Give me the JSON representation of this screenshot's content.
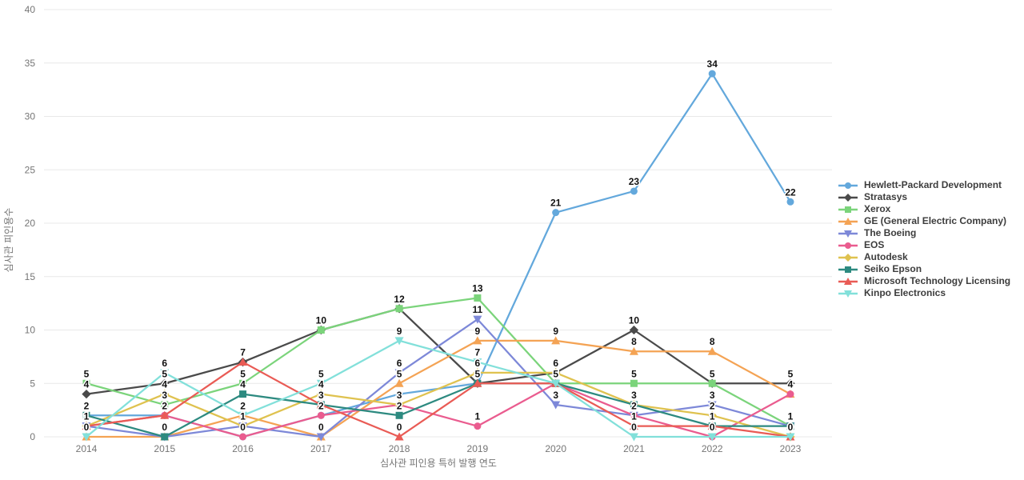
{
  "chart_data": {
    "type": "line",
    "x": [
      2014,
      2015,
      2016,
      2017,
      2018,
      2019,
      2020,
      2021,
      2022,
      2023
    ],
    "xlabel": "심사관 피인용 특허 발행 연도",
    "ylabel": "심사관 피인용수",
    "ylim": [
      0,
      40
    ],
    "y_ticks": [
      0,
      5,
      10,
      15,
      20,
      25,
      30,
      35,
      40
    ],
    "grid": true,
    "legend_position": "right",
    "series": [
      {
        "name": "Hewlett-Packard Development",
        "color": "#63A8DC",
        "marker": "circle",
        "values": [
          2,
          2,
          0,
          2,
          4,
          5,
          21,
          23,
          34,
          22
        ],
        "hidden_labels": [
          2018
        ]
      },
      {
        "name": "Stratasys",
        "color": "#4A4A4A",
        "marker": "diamond",
        "values": [
          4,
          5,
          7,
          10,
          12,
          5,
          6,
          10,
          5,
          5
        ],
        "hidden_labels": []
      },
      {
        "name": "Xerox",
        "color": "#7BD47B",
        "marker": "square",
        "values": [
          5,
          3,
          5,
          10,
          12,
          13,
          5,
          5,
          5,
          1
        ],
        "hidden_labels": []
      },
      {
        "name": "GE (General Electric Company)",
        "color": "#F4A354",
        "marker": "triangle-up",
        "values": [
          0,
          0,
          2,
          0,
          5,
          9,
          9,
          8,
          8,
          4
        ],
        "hidden_labels": []
      },
      {
        "name": "The Boeing",
        "color": "#7D88D8",
        "marker": "triangle-down",
        "values": [
          1,
          0,
          1,
          0,
          6,
          11,
          3,
          2,
          3,
          1
        ],
        "hidden_labels": []
      },
      {
        "name": "EOS",
        "color": "#EA5C8F",
        "marker": "circle",
        "values": [
          1,
          2,
          0,
          2,
          3,
          1,
          5,
          2,
          0,
          4
        ],
        "hidden_labels": []
      },
      {
        "name": "Autodesk",
        "color": "#DFC24F",
        "marker": "diamond",
        "values": [
          1,
          4,
          1,
          4,
          3,
          6,
          6,
          3,
          2,
          0
        ],
        "hidden_labels": []
      },
      {
        "name": "Seiko Epson",
        "color": "#2D8A80",
        "marker": "square",
        "values": [
          2,
          0,
          4,
          3,
          2,
          5,
          5,
          3,
          1,
          1
        ],
        "hidden_labels": []
      },
      {
        "name": "Microsoft Technology Licensing",
        "color": "#E95B55",
        "marker": "triangle-up",
        "values": [
          1,
          2,
          7,
          3,
          0,
          5,
          5,
          1,
          1,
          0
        ],
        "hidden_labels": []
      },
      {
        "name": "Kinpo Electronics",
        "color": "#82E0DA",
        "marker": "triangle-down",
        "values": [
          0,
          6,
          2,
          5,
          9,
          7,
          5,
          0,
          0,
          0
        ],
        "hidden_labels": []
      }
    ]
  },
  "layout_colors": {
    "grid": "#e8e8e8",
    "tick_text": "#757575",
    "label_text": "#111111",
    "legend_text": "#3d3d3d",
    "background": "#ffffff"
  }
}
